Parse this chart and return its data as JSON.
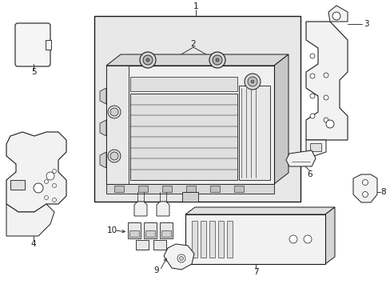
{
  "bg_color": "#ffffff",
  "line_color": "#1a1a1a",
  "fill_box": "#e8e8e8",
  "fill_part": "#f5f5f5",
  "fill_dark": "#d0d0d0",
  "label_1": "1",
  "label_2": "2",
  "label_3": "3",
  "label_4": "4",
  "label_5": "5",
  "label_6": "6",
  "label_7": "7",
  "label_8": "8",
  "label_9": "9",
  "label_10": "10",
  "figsize": [
    4.89,
    3.6
  ],
  "dpi": 100
}
